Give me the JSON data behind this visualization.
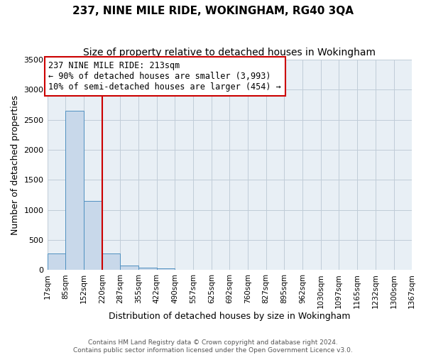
{
  "title": "237, NINE MILE RIDE, WOKINGHAM, RG40 3QA",
  "subtitle": "Size of property relative to detached houses in Wokingham",
  "xlabel": "Distribution of detached houses by size in Wokingham",
  "ylabel": "Number of detached properties",
  "bin_edges": [
    17,
    85,
    152,
    220,
    287,
    355,
    422,
    490,
    557,
    625,
    692,
    760,
    827,
    895,
    962,
    1030,
    1097,
    1165,
    1232,
    1300,
    1367
  ],
  "bar_heights": [
    270,
    2650,
    1150,
    280,
    80,
    40,
    30,
    0,
    0,
    0,
    0,
    0,
    0,
    0,
    0,
    0,
    0,
    0,
    0,
    0
  ],
  "bar_color": "#c8d8ea",
  "bar_edge_color": "#5090c0",
  "vline_x": 220,
  "vline_color": "#cc0000",
  "ylim": [
    0,
    3500
  ],
  "yticks": [
    0,
    500,
    1000,
    1500,
    2000,
    2500,
    3000,
    3500
  ],
  "annotation_text": "237 NINE MILE RIDE: 213sqm\n← 90% of detached houses are smaller (3,993)\n10% of semi-detached houses are larger (454) →",
  "annotation_box_color": "#ffffff",
  "annotation_box_edge_color": "#cc0000",
  "footer_line1": "Contains HM Land Registry data © Crown copyright and database right 2024.",
  "footer_line2": "Contains public sector information licensed under the Open Government Licence v3.0.",
  "background_color": "#ffffff",
  "axes_bg_color": "#e8eff5",
  "grid_color": "#c0ccd8",
  "title_fontsize": 11,
  "subtitle_fontsize": 10,
  "tick_label_fontsize": 7.5,
  "annotation_fontsize": 8.5,
  "footer_fontsize": 6.5,
  "xtick_labels": [
    "17sqm",
    "85sqm",
    "152sqm",
    "220sqm",
    "287sqm",
    "355sqm",
    "422sqm",
    "490sqm",
    "557sqm",
    "625sqm",
    "692sqm",
    "760sqm",
    "827sqm",
    "895sqm",
    "962sqm",
    "1030sqm",
    "1097sqm",
    "1165sqm",
    "1232sqm",
    "1300sqm",
    "1367sqm"
  ]
}
